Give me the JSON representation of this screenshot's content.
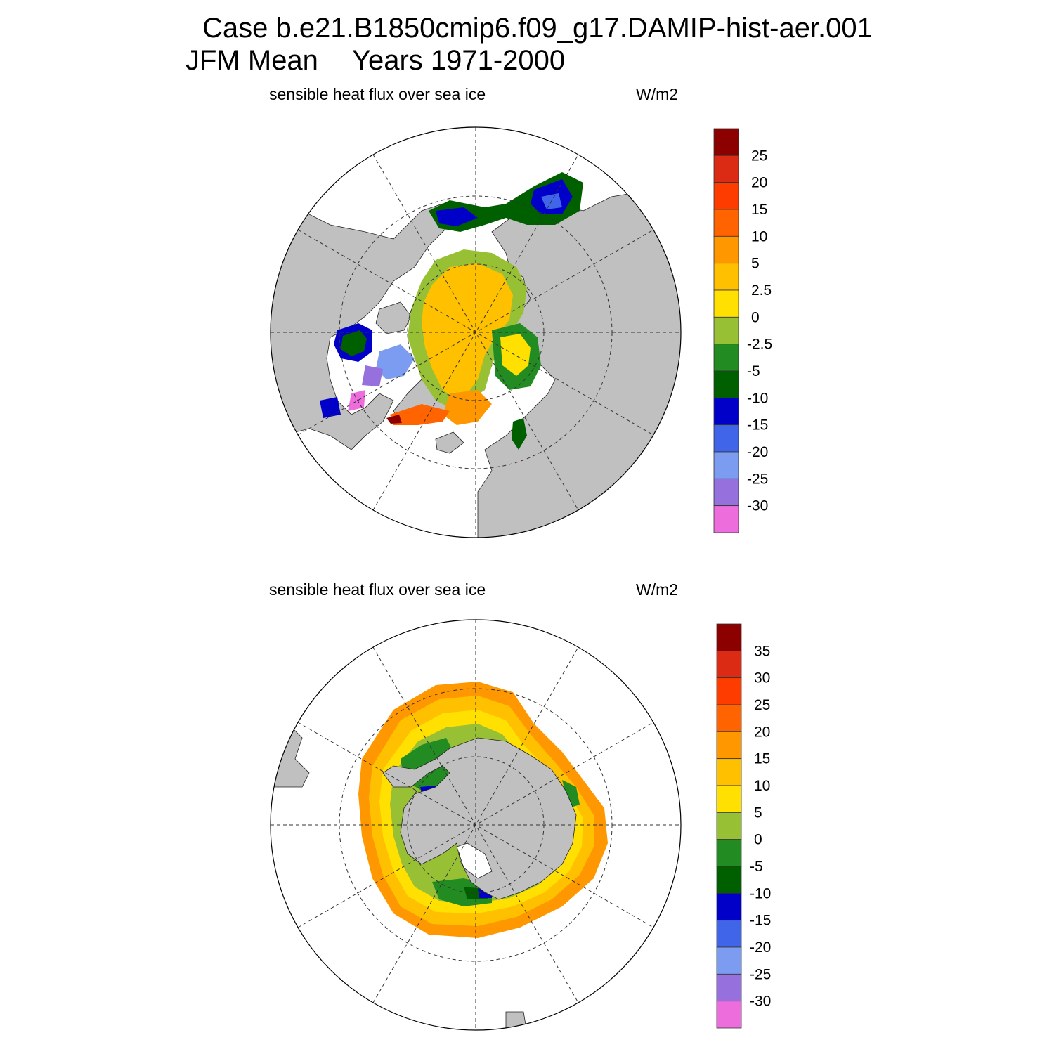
{
  "header": {
    "case_line": "Case b.e21.B1850cmip6.f09_g17.DAMIP-hist-aer.001",
    "season": "JFM Mean",
    "years": "Years 1971-2000"
  },
  "colors": {
    "land": "#c0c0c0",
    "grid": "#333333",
    "palette": [
      "#ee6ddc",
      "#9670dc",
      "#7b9cf0",
      "#4065e8",
      "#0000c8",
      "#006000",
      "#228b22",
      "#98c034",
      "#ffe000",
      "#ffc000",
      "#ff9800",
      "#ff6400",
      "#ff3c00",
      "#dc2b14",
      "#8c0000"
    ]
  },
  "panels": [
    {
      "name": "arctic",
      "variable": "sensible heat flux over sea ice",
      "units": "W/m2",
      "hemisphere": "north",
      "colorbar_labels": [
        "25",
        "20",
        "15",
        "10",
        "5",
        "2.5",
        "0",
        "-2.5",
        "-5",
        "-10",
        "-15",
        "-20",
        "-25",
        "-30"
      ]
    },
    {
      "name": "antarctic",
      "variable": "sensible heat flux over sea ice",
      "units": "W/m2",
      "hemisphere": "south",
      "colorbar_labels": [
        "35",
        "30",
        "25",
        "20",
        "15",
        "10",
        "5",
        "0",
        "-5",
        "-10",
        "-15",
        "-20",
        "-25",
        "-30"
      ]
    }
  ]
}
